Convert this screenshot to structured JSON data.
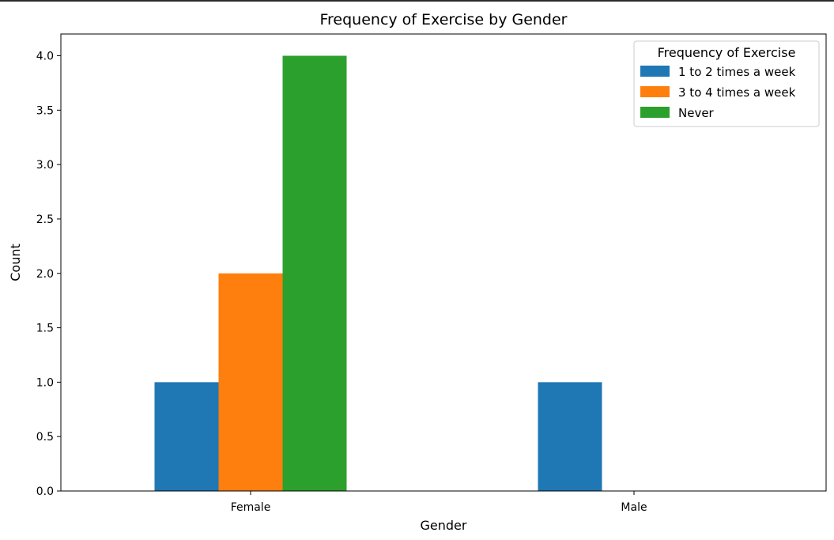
{
  "chart_data": {
    "type": "bar",
    "title": "Frequency of Exercise by Gender",
    "xlabel": "Gender",
    "ylabel": "Count",
    "categories": [
      "Female",
      "Male"
    ],
    "series": [
      {
        "name": "1 to 2 times a week",
        "color": "#1f77b4",
        "values": [
          1,
          1
        ]
      },
      {
        "name": "3 to 4 times a week",
        "color": "#ff7f0e",
        "values": [
          2,
          0
        ]
      },
      {
        "name": "Never",
        "color": "#2ca02c",
        "values": [
          4,
          0
        ]
      }
    ],
    "ylim": [
      0,
      4.2
    ],
    "yticks": [
      "0.0",
      "0.5",
      "1.0",
      "1.5",
      "2.0",
      "2.5",
      "3.0",
      "3.5",
      "4.0"
    ],
    "legend": {
      "title": "Frequency of Exercise",
      "placement": "top-right"
    },
    "grid": false
  }
}
